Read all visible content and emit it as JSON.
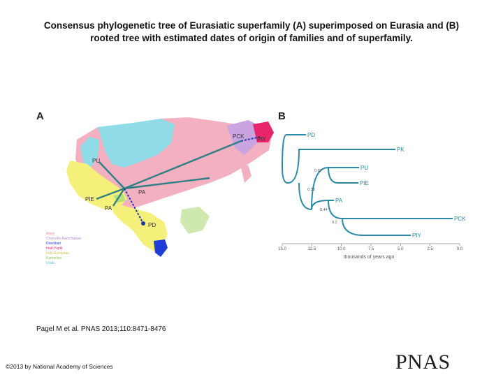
{
  "title": {
    "line1": "Consensus phylogenetic tree of Eurasiatic superfamily (A) superimposed on Eurasia and (B)",
    "line2": "rooted tree with estimated dates of origin of families and of superfamily."
  },
  "panels": {
    "a": "A",
    "b": "B"
  },
  "map": {
    "nodes": [
      "PCK",
      "PIY",
      "PU",
      "PA",
      "PIE",
      "PA",
      "PD"
    ],
    "legend": [
      "Altaic",
      "Chukotko-Kamchatkan",
      "Dravidian",
      "Inuit-Yupik",
      "Indo-European",
      "Kartvelian",
      "Uralic"
    ],
    "colors": {
      "uralic": "#8fdce8",
      "altaic": "#f3b0c0",
      "indo_european": "#f4f07a",
      "dravidian": "#1e3dd6",
      "chukotko": "#c9a4e0",
      "inuit": "#e8246a",
      "kartvelian": "#b7e07a",
      "tree_line": "#2f7f86",
      "dotted_line": "#1e3aa6"
    }
  },
  "tree": {
    "leaves": [
      "PD",
      "PK",
      "PU",
      "PIE",
      "PA",
      "PCK",
      "PIY"
    ],
    "node_labels": [
      "0.67",
      "0.33",
      "0.44",
      "0.2"
    ],
    "axis_ticks": [
      "15.0",
      "12.5",
      "10.0",
      "7.5",
      "5.0",
      "2.5",
      "0.0"
    ],
    "axis_label": "thousands of years ago",
    "line_color": "#2b8aa6"
  },
  "citation": "Pagel M et al. PNAS 2013;110:8471-8476",
  "copyright": "©2013 by National Academy of Sciences",
  "logo": "PNAS"
}
